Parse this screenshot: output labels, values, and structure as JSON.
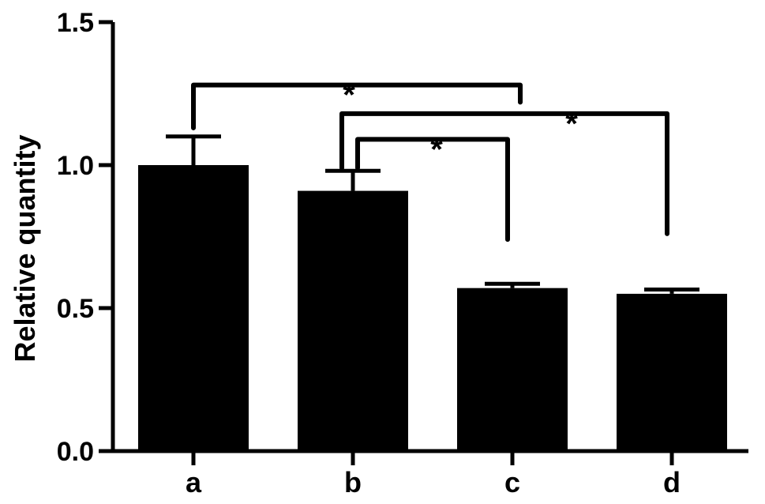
{
  "chart_data": {
    "type": "bar",
    "title": "",
    "xlabel": "",
    "ylabel": "Relative quantity",
    "categories": [
      "a",
      "b",
      "c",
      "d"
    ],
    "values": [
      1.0,
      0.91,
      0.57,
      0.55
    ],
    "errors": [
      0.1,
      0.07,
      0.015,
      0.015
    ],
    "ylim": [
      0,
      1.5
    ],
    "yticks": [
      {
        "value": 0.0,
        "label": "0.0"
      },
      {
        "value": 0.5,
        "label": "0.5"
      },
      {
        "value": 1.0,
        "label": "1.0"
      },
      {
        "value": 1.5,
        "label": "1.5"
      }
    ],
    "grid": false,
    "bar_color": "#000000",
    "significance": [
      {
        "from": "a",
        "to": "c",
        "label": "*",
        "level": 1.28,
        "left_drop_to": 1.13,
        "right_drop_to": 1.22
      },
      {
        "from": "b",
        "to": "d",
        "label": "*",
        "level": 1.18,
        "left_drop_to": 0.99,
        "right_drop_to": 0.76
      },
      {
        "from": "b",
        "to": "c",
        "label": "*",
        "level": 1.09,
        "left_drop_to": 0.99,
        "right_drop_to": 0.74
      }
    ]
  }
}
